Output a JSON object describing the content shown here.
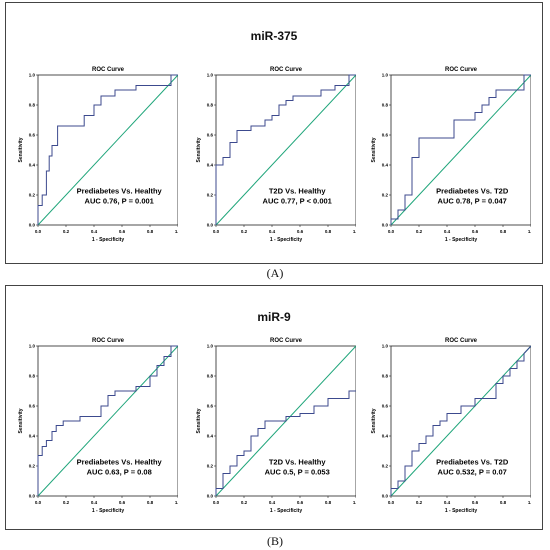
{
  "panels": [
    {
      "title": "miR-375",
      "label": "(A)",
      "charts": [
        {
          "type": "line",
          "title": "ROC Curve",
          "xlabel": "1 - Specificity",
          "ylabel": "Sensitivity",
          "annotation_line1": "Prediabetes Vs. Healthy",
          "annotation_line2": "AUC 0.76, P = 0.001",
          "xlim": [
            0,
            1
          ],
          "ylim": [
            0,
            1
          ],
          "xticks": [
            "0.0",
            "0.2",
            "0.4",
            "0.6",
            "0.8",
            "1.0"
          ],
          "yticks": [
            "0.0",
            "0.2",
            "0.4",
            "0.6",
            "0.8",
            "1.0"
          ],
          "colors": {
            "roc": "#3c4a8e",
            "reference": "#1ea57a"
          },
          "series": [
            {
              "x": [
                0,
                0,
                0.03,
                0.03,
                0.06,
                0.06,
                0.08,
                0.08,
                0.1,
                0.1,
                0.14,
                0.14,
                0.2,
                0.2,
                0.33,
                0.33,
                0.4,
                0.4,
                0.45,
                0.45,
                0.5,
                0.5,
                0.55,
                0.55,
                0.7,
                0.7,
                0.95,
                0.95,
                1.0
              ],
              "y": [
                0,
                0.13,
                0.13,
                0.2,
                0.2,
                0.36,
                0.36,
                0.46,
                0.46,
                0.53,
                0.53,
                0.66,
                0.66,
                0.66,
                0.66,
                0.73,
                0.73,
                0.8,
                0.8,
                0.86,
                0.86,
                0.86,
                0.86,
                0.9,
                0.9,
                0.93,
                0.93,
                1.0,
                1.0
              ]
            }
          ]
        },
        {
          "type": "line",
          "title": "ROC Curve",
          "xlabel": "1 - Specificity",
          "ylabel": "Sensitivity",
          "annotation_line1": "T2D Vs. Healthy",
          "annotation_line2": "AUC 0.77, P < 0.001",
          "xlim": [
            0,
            1
          ],
          "ylim": [
            0,
            1
          ],
          "xticks": [
            "0.0",
            "0.2",
            "0.4",
            "0.6",
            "0.8",
            "1.0"
          ],
          "yticks": [
            "0.0",
            "0.2",
            "0.4",
            "0.6",
            "0.8",
            "1.0"
          ],
          "colors": {
            "roc": "#3c4a8e",
            "reference": "#1ea57a"
          },
          "series": [
            {
              "x": [
                0,
                0,
                0.05,
                0.05,
                0.1,
                0.1,
                0.15,
                0.15,
                0.25,
                0.25,
                0.35,
                0.35,
                0.4,
                0.4,
                0.45,
                0.45,
                0.5,
                0.5,
                0.55,
                0.55,
                0.7,
                0.7,
                0.75,
                0.75,
                0.85,
                0.85,
                0.95,
                0.95,
                1.0
              ],
              "y": [
                0,
                0.4,
                0.4,
                0.45,
                0.45,
                0.55,
                0.55,
                0.63,
                0.63,
                0.66,
                0.66,
                0.7,
                0.7,
                0.73,
                0.73,
                0.8,
                0.8,
                0.83,
                0.83,
                0.86,
                0.86,
                0.86,
                0.86,
                0.9,
                0.9,
                0.93,
                0.93,
                1.0,
                1.0
              ]
            }
          ]
        },
        {
          "type": "line",
          "title": "ROC Curve",
          "xlabel": "1 - Specificity",
          "ylabel": "Sensitivity",
          "annotation_line1": "Prediabetes Vs. T2D",
          "annotation_line2": "AUC 0.78, P = 0.047",
          "xlim": [
            0,
            1
          ],
          "ylim": [
            0,
            1
          ],
          "xticks": [
            "0.0",
            "0.2",
            "0.4",
            "0.6",
            "0.8",
            "1.0"
          ],
          "yticks": [
            "0.0",
            "0.2",
            "0.4",
            "0.6",
            "0.8",
            "1.0"
          ],
          "colors": {
            "roc": "#3c4a8e",
            "reference": "#1ea57a"
          },
          "series": [
            {
              "x": [
                0,
                0,
                0.05,
                0.05,
                0.1,
                0.1,
                0.15,
                0.15,
                0.2,
                0.2,
                0.3,
                0.3,
                0.45,
                0.45,
                0.6,
                0.6,
                0.65,
                0.65,
                0.7,
                0.7,
                0.75,
                0.75,
                0.95,
                0.95,
                1.0
              ],
              "y": [
                0,
                0.04,
                0.04,
                0.1,
                0.1,
                0.2,
                0.2,
                0.45,
                0.45,
                0.58,
                0.58,
                0.58,
                0.58,
                0.7,
                0.7,
                0.75,
                0.75,
                0.8,
                0.8,
                0.85,
                0.85,
                0.9,
                0.9,
                1.0,
                1.0
              ]
            }
          ]
        }
      ]
    },
    {
      "title": "miR-9",
      "label": "(B)",
      "charts": [
        {
          "type": "line",
          "title": "ROC Curve",
          "xlabel": "1 - Specificity",
          "ylabel": "Sensitivity",
          "annotation_line1": "Prediabetes Vs. Healthy",
          "annotation_line2": "AUC 0.63, P = 0.08",
          "xlim": [
            0,
            1
          ],
          "ylim": [
            0,
            1
          ],
          "xticks": [
            "0.0",
            "0.2",
            "0.4",
            "0.6",
            "0.8",
            "1.0"
          ],
          "yticks": [
            "0.0",
            "0.2",
            "0.4",
            "0.6",
            "0.8",
            "1.0"
          ],
          "colors": {
            "roc": "#3c4a8e",
            "reference": "#1ea57a"
          },
          "series": [
            {
              "x": [
                0,
                0,
                0.03,
                0.03,
                0.06,
                0.06,
                0.1,
                0.1,
                0.13,
                0.13,
                0.18,
                0.18,
                0.3,
                0.3,
                0.45,
                0.45,
                0.5,
                0.5,
                0.55,
                0.55,
                0.7,
                0.7,
                0.8,
                0.8,
                0.85,
                0.85,
                0.9,
                0.9,
                0.95,
                0.95,
                1.0
              ],
              "y": [
                0,
                0.27,
                0.27,
                0.33,
                0.33,
                0.37,
                0.37,
                0.43,
                0.43,
                0.47,
                0.47,
                0.5,
                0.5,
                0.53,
                0.53,
                0.6,
                0.6,
                0.67,
                0.67,
                0.7,
                0.7,
                0.73,
                0.73,
                0.8,
                0.8,
                0.87,
                0.87,
                0.93,
                0.93,
                1.0,
                1.0
              ]
            }
          ]
        },
        {
          "type": "line",
          "title": "ROC Curve",
          "xlabel": "1 - Specificity",
          "ylabel": "Sensitivity",
          "annotation_line1": "T2D Vs. Healthy",
          "annotation_line2": "AUC 0.5, P = 0.053",
          "xlim": [
            0,
            1
          ],
          "ylim": [
            0,
            1
          ],
          "xticks": [
            "0.0",
            "0.2",
            "0.4",
            "0.6",
            "0.8",
            "1.0"
          ],
          "yticks": [
            "0.0",
            "0.2",
            "0.4",
            "0.6",
            "0.8",
            "1.0"
          ],
          "colors": {
            "roc": "#3c4a8e",
            "reference": "#1ea57a"
          },
          "series": [
            {
              "x": [
                0,
                0,
                0.05,
                0.05,
                0.1,
                0.1,
                0.15,
                0.15,
                0.2,
                0.2,
                0.25,
                0.25,
                0.3,
                0.3,
                0.35,
                0.35,
                0.5,
                0.5,
                0.6,
                0.6,
                0.7,
                0.7,
                0.8,
                0.8,
                0.95,
                0.95,
                1.0
              ],
              "y": [
                0,
                0.05,
                0.05,
                0.15,
                0.15,
                0.2,
                0.2,
                0.27,
                0.27,
                0.3,
                0.3,
                0.4,
                0.4,
                0.45,
                0.45,
                0.5,
                0.5,
                0.53,
                0.53,
                0.55,
                0.55,
                0.6,
                0.6,
                0.65,
                0.65,
                0.7,
                0.7
              ]
            }
          ]
        },
        {
          "type": "line",
          "title": "ROC Curve",
          "xlabel": "1 - Specificity",
          "ylabel": "Sensitivity",
          "annotation_line1": "Prediabetes Vs. T2D",
          "annotation_line2": "AUC 0.532, P = 0.07",
          "xlim": [
            0,
            1
          ],
          "ylim": [
            0,
            1
          ],
          "xticks": [
            "0.0",
            "0.2",
            "0.4",
            "0.6",
            "0.8",
            "1.0"
          ],
          "yticks": [
            "0.0",
            "0.2",
            "0.4",
            "0.6",
            "0.8",
            "1.0"
          ],
          "colors": {
            "roc": "#3c4a8e",
            "reference": "#1ea57a"
          },
          "series": [
            {
              "x": [
                0,
                0,
                0.05,
                0.05,
                0.1,
                0.1,
                0.15,
                0.15,
                0.2,
                0.2,
                0.25,
                0.25,
                0.3,
                0.3,
                0.35,
                0.35,
                0.4,
                0.4,
                0.5,
                0.5,
                0.6,
                0.6,
                0.75,
                0.75,
                0.8,
                0.8,
                0.85,
                0.85,
                0.9,
                0.9,
                0.95,
                0.95,
                1.0
              ],
              "y": [
                0,
                0.05,
                0.05,
                0.1,
                0.1,
                0.2,
                0.2,
                0.3,
                0.3,
                0.35,
                0.35,
                0.4,
                0.4,
                0.47,
                0.47,
                0.5,
                0.5,
                0.55,
                0.55,
                0.6,
                0.6,
                0.65,
                0.65,
                0.75,
                0.75,
                0.8,
                0.8,
                0.85,
                0.85,
                0.9,
                0.9,
                0.95,
                1.0
              ]
            }
          ]
        }
      ]
    }
  ]
}
